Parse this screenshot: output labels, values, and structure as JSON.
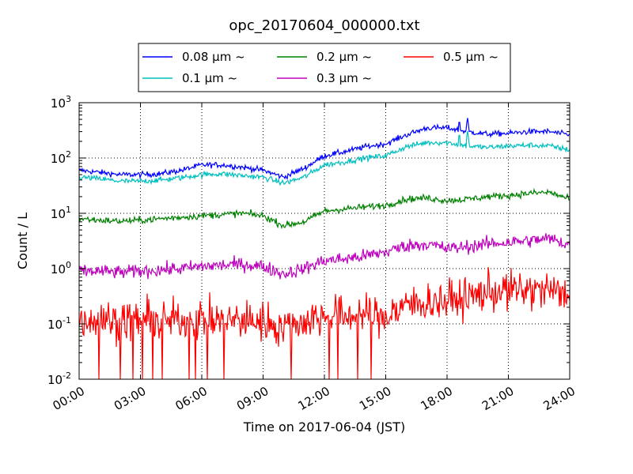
{
  "chart_data": {
    "type": "line",
    "title": "opc_20170604_000000.txt",
    "xlabel": "Time on 2017-06-04 (JST)",
    "ylabel": "Count / L",
    "yscale": "log",
    "ylim": [
      0.01,
      1000
    ],
    "xlim": [
      "00:00",
      "24:00"
    ],
    "grid": true,
    "legend_position": "top",
    "x_ticks": [
      "00:00",
      "03:00",
      "06:00",
      "09:00",
      "12:00",
      "15:00",
      "18:00",
      "21:00",
      "24:00"
    ],
    "y_ticks": [
      {
        "base": "10",
        "exp": "-2"
      },
      {
        "base": "10",
        "exp": "-1"
      },
      {
        "base": "10",
        "exp": "0"
      },
      {
        "base": "10",
        "exp": "1"
      },
      {
        "base": "10",
        "exp": "2"
      },
      {
        "base": "10",
        "exp": "3"
      }
    ],
    "x_hours": [
      0,
      1,
      2,
      3,
      4,
      5,
      6,
      7,
      8,
      9,
      10,
      11,
      12,
      13,
      14,
      15,
      16,
      17,
      18,
      19,
      20,
      21,
      22,
      23,
      24
    ],
    "series": [
      {
        "name": "0.08 μm ~",
        "color": "#0000ff",
        "noise": 0.05,
        "values": [
          60,
          55,
          50,
          50,
          52,
          60,
          75,
          75,
          68,
          60,
          45,
          65,
          110,
          130,
          160,
          180,
          260,
          350,
          350,
          300,
          270,
          280,
          300,
          300,
          260
        ]
      },
      {
        "name": "0.1 μm ~",
        "color": "#00bfbf",
        "noise": 0.05,
        "values": [
          45,
          42,
          38,
          38,
          40,
          44,
          50,
          52,
          48,
          45,
          35,
          45,
          75,
          85,
          100,
          110,
          160,
          190,
          190,
          165,
          155,
          165,
          170,
          165,
          140
        ]
      },
      {
        "name": "0.2 μm ~",
        "color": "#008000",
        "noise": 0.06,
        "values": [
          8,
          7.5,
          7.2,
          7.5,
          8,
          8.5,
          9,
          9.5,
          10,
          9,
          6,
          7,
          11,
          12,
          13,
          14,
          18,
          19,
          17,
          18,
          20,
          21,
          23,
          24,
          18
        ]
      },
      {
        "name": "0.3 μm ~",
        "color": "#bf00bf",
        "noise": 0.12,
        "values": [
          0.9,
          0.9,
          0.85,
          0.9,
          0.95,
          1.0,
          1.1,
          1.15,
          1.2,
          1.1,
          0.8,
          1.0,
          1.4,
          1.5,
          1.7,
          2.0,
          2.6,
          2.8,
          2.3,
          2.5,
          2.8,
          3.0,
          3.2,
          3.5,
          2.7
        ]
      },
      {
        "name": "0.5 μm ~",
        "color": "#ff0000",
        "noise": 0.35,
        "values": [
          0.13,
          0.12,
          0.11,
          0.12,
          0.11,
          0.12,
          0.12,
          0.11,
          0.12,
          0.11,
          0.09,
          0.11,
          0.14,
          0.14,
          0.15,
          0.13,
          0.22,
          0.25,
          0.26,
          0.3,
          0.38,
          0.4,
          0.4,
          0.4,
          0.32
        ]
      }
    ],
    "spikes": [
      {
        "series": 0,
        "x_hours": [
          18.6,
          19.0
        ],
        "values": [
          500,
          550
        ]
      },
      {
        "series": 1,
        "x_hours": [
          18.6,
          19.0
        ],
        "values": [
          290,
          320
        ]
      }
    ]
  }
}
